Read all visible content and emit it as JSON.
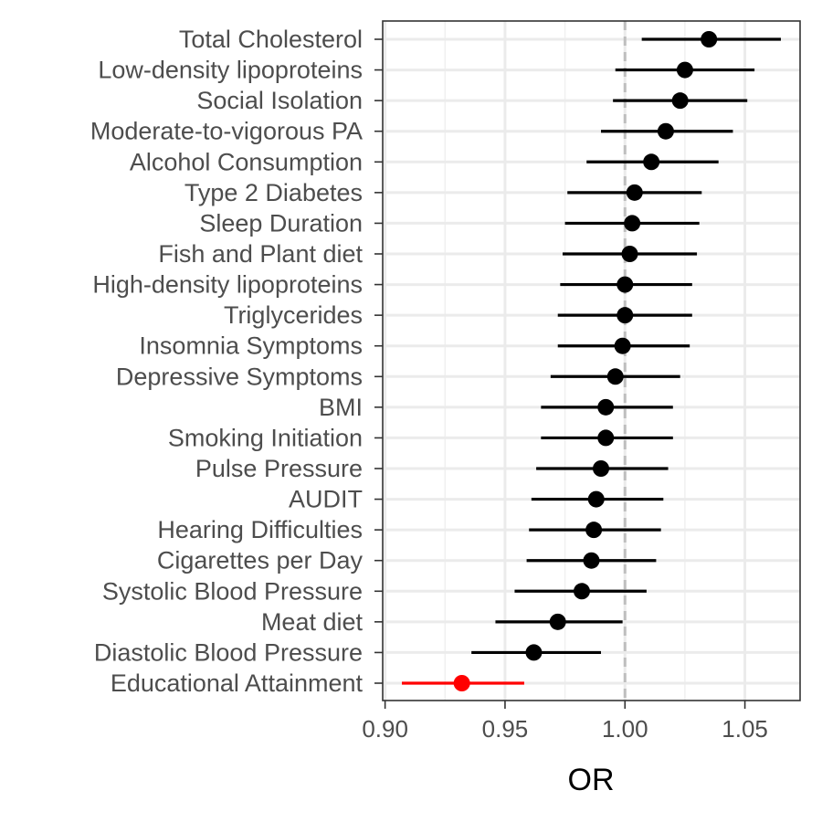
{
  "chart_data": {
    "type": "forest",
    "xlabel": "OR",
    "ylabel": "",
    "xlim": [
      0.899,
      1.073
    ],
    "x_ticks": [
      "0.90",
      "0.95",
      "1.00",
      "1.05"
    ],
    "x_tick_values": [
      0.9,
      0.95,
      1.0,
      1.05
    ],
    "reference_line": 1.0,
    "grid": true,
    "default_color": "#000000",
    "highlight_color": "#ff0000",
    "reference_color": "#bfbfbf",
    "rows": [
      {
        "label": "Total Cholesterol",
        "or": 1.035,
        "lo": 1.007,
        "hi": 1.065,
        "highlight": false
      },
      {
        "label": "Low-density lipoproteins",
        "or": 1.025,
        "lo": 0.996,
        "hi": 1.054,
        "highlight": false
      },
      {
        "label": "Social Isolation",
        "or": 1.023,
        "lo": 0.995,
        "hi": 1.051,
        "highlight": false
      },
      {
        "label": "Moderate-to-vigorous PA",
        "or": 1.017,
        "lo": 0.99,
        "hi": 1.045,
        "highlight": false
      },
      {
        "label": "Alcohol Consumption",
        "or": 1.011,
        "lo": 0.984,
        "hi": 1.039,
        "highlight": false
      },
      {
        "label": "Type 2 Diabetes",
        "or": 1.004,
        "lo": 0.976,
        "hi": 1.032,
        "highlight": false
      },
      {
        "label": "Sleep Duration",
        "or": 1.003,
        "lo": 0.975,
        "hi": 1.031,
        "highlight": false
      },
      {
        "label": "Fish and Plant diet",
        "or": 1.002,
        "lo": 0.974,
        "hi": 1.03,
        "highlight": false
      },
      {
        "label": "High-density lipoproteins",
        "or": 1.0,
        "lo": 0.973,
        "hi": 1.028,
        "highlight": false
      },
      {
        "label": "Triglycerides",
        "or": 1.0,
        "lo": 0.972,
        "hi": 1.028,
        "highlight": false
      },
      {
        "label": "Insomnia Symptoms",
        "or": 0.999,
        "lo": 0.972,
        "hi": 1.027,
        "highlight": false
      },
      {
        "label": "Depressive Symptoms",
        "or": 0.996,
        "lo": 0.969,
        "hi": 1.023,
        "highlight": false
      },
      {
        "label": "BMI",
        "or": 0.992,
        "lo": 0.965,
        "hi": 1.02,
        "highlight": false
      },
      {
        "label": "Smoking Initiation",
        "or": 0.992,
        "lo": 0.965,
        "hi": 1.02,
        "highlight": false
      },
      {
        "label": "Pulse Pressure",
        "or": 0.99,
        "lo": 0.963,
        "hi": 1.018,
        "highlight": false
      },
      {
        "label": "AUDIT",
        "or": 0.988,
        "lo": 0.961,
        "hi": 1.016,
        "highlight": false
      },
      {
        "label": "Hearing Difficulties",
        "or": 0.987,
        "lo": 0.96,
        "hi": 1.015,
        "highlight": false
      },
      {
        "label": "Cigarettes per Day",
        "or": 0.986,
        "lo": 0.959,
        "hi": 1.013,
        "highlight": false
      },
      {
        "label": "Systolic Blood Pressure",
        "or": 0.982,
        "lo": 0.954,
        "hi": 1.009,
        "highlight": false
      },
      {
        "label": "Meat diet",
        "or": 0.972,
        "lo": 0.946,
        "hi": 0.999,
        "highlight": false
      },
      {
        "label": "Diastolic Blood Pressure",
        "or": 0.962,
        "lo": 0.936,
        "hi": 0.99,
        "highlight": false
      },
      {
        "label": "Educational Attainment",
        "or": 0.932,
        "lo": 0.907,
        "hi": 0.958,
        "highlight": true
      }
    ]
  }
}
